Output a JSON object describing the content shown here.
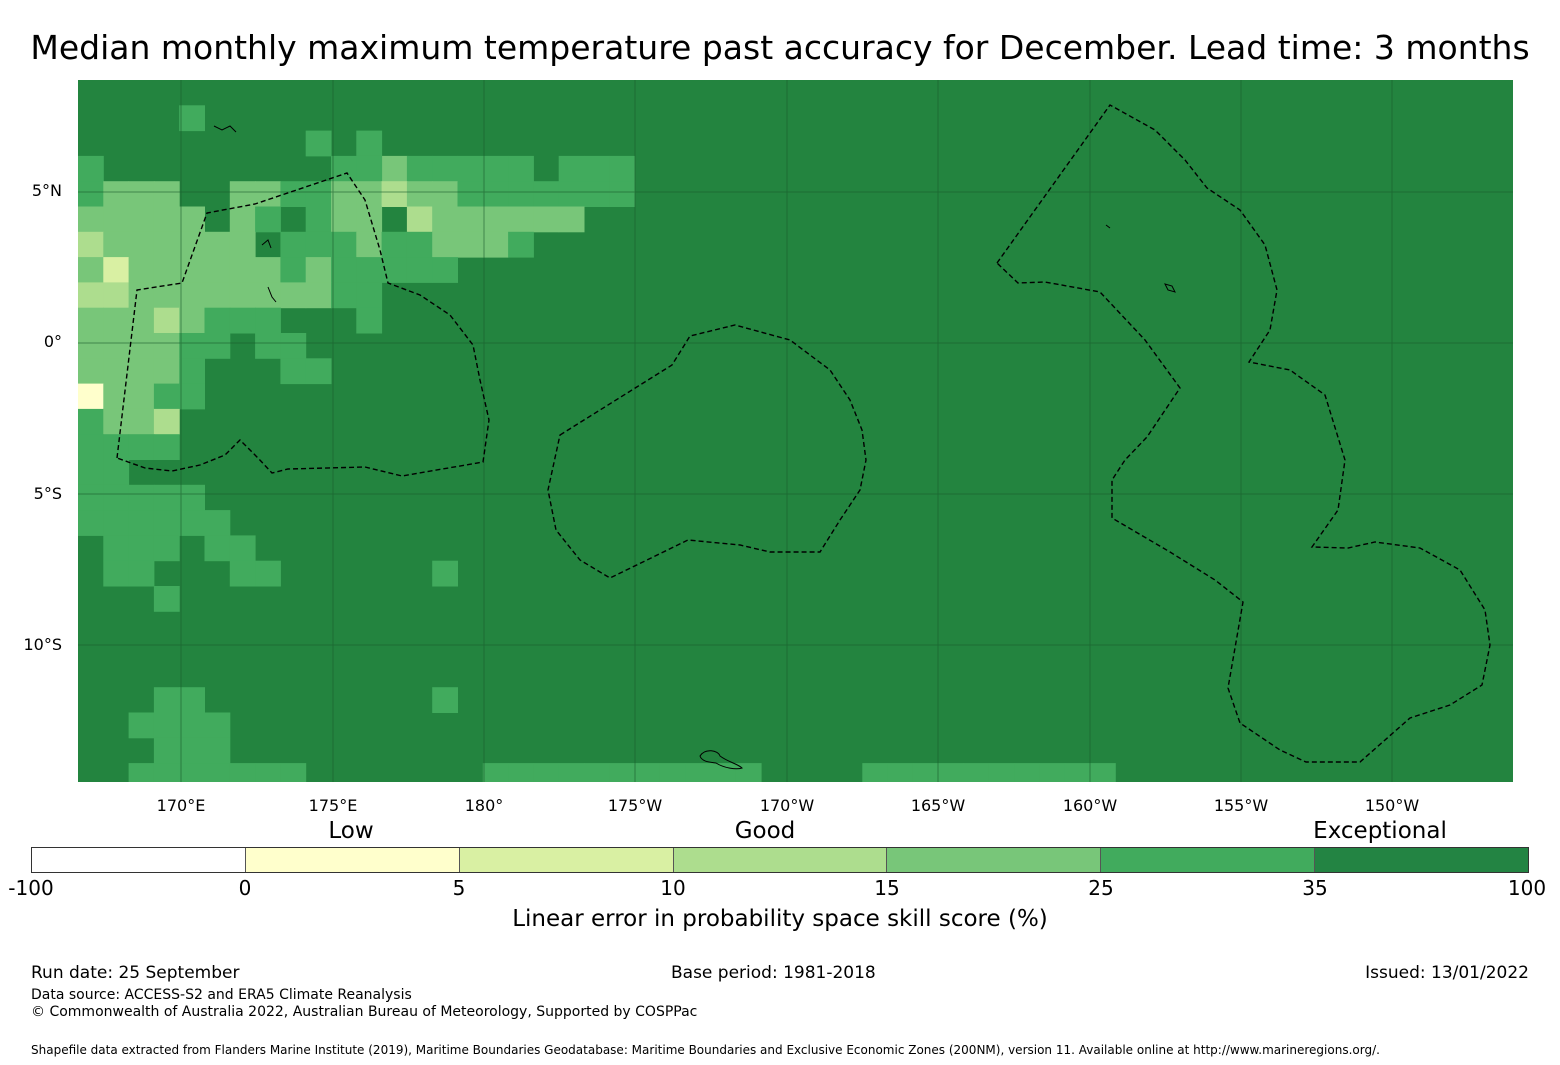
{
  "title": "Median monthly maximum temperature past accuracy for December. Lead time: 3 months",
  "map": {
    "lat_range": [
      -14.5,
      8.7
    ],
    "lon_range": [
      166.6,
      213.9
    ],
    "lat_labels": [
      "5°N",
      "0°",
      "5°S",
      "10°S"
    ],
    "lon_labels": [
      "170°E",
      "175°E",
      "180°",
      "175°W",
      "170°W",
      "165°W",
      "160°W",
      "155°W",
      "150°W"
    ],
    "background_color": "#23843f"
  },
  "colorbar": {
    "category_labels": [
      "Low",
      "Good",
      "Exceptional"
    ],
    "ticks": [
      "-100",
      "0",
      "5",
      "10",
      "15",
      "25",
      "35",
      "100"
    ],
    "colors": [
      "#ffffff",
      "#ffffcc",
      "#d9f0a3",
      "#addd8e",
      "#78c679",
      "#41ab5d",
      "#238443"
    ],
    "label": "Linear error in probability space skill score (%)"
  },
  "footer": {
    "run_date": "Run date: 25 September",
    "base_period": "Base period: 1981-2018",
    "issued": "Issued: 13/01/2022",
    "data_source": "Data source: ACCESS-S2 and ERA5 Climate Reanalysis",
    "copyright": "© Commonwealth of Australia 2022, Australian Bureau of Meteorology, Supported by COSPPac",
    "shapefile": "Shapefile data extracted from Flanders Marine Institute (2019), Maritime Boundaries Geodatabase: Maritime Boundaries and Exclusive Economic Zones (200NM), version 11. Available online at http://www.marineregions.org/."
  }
}
